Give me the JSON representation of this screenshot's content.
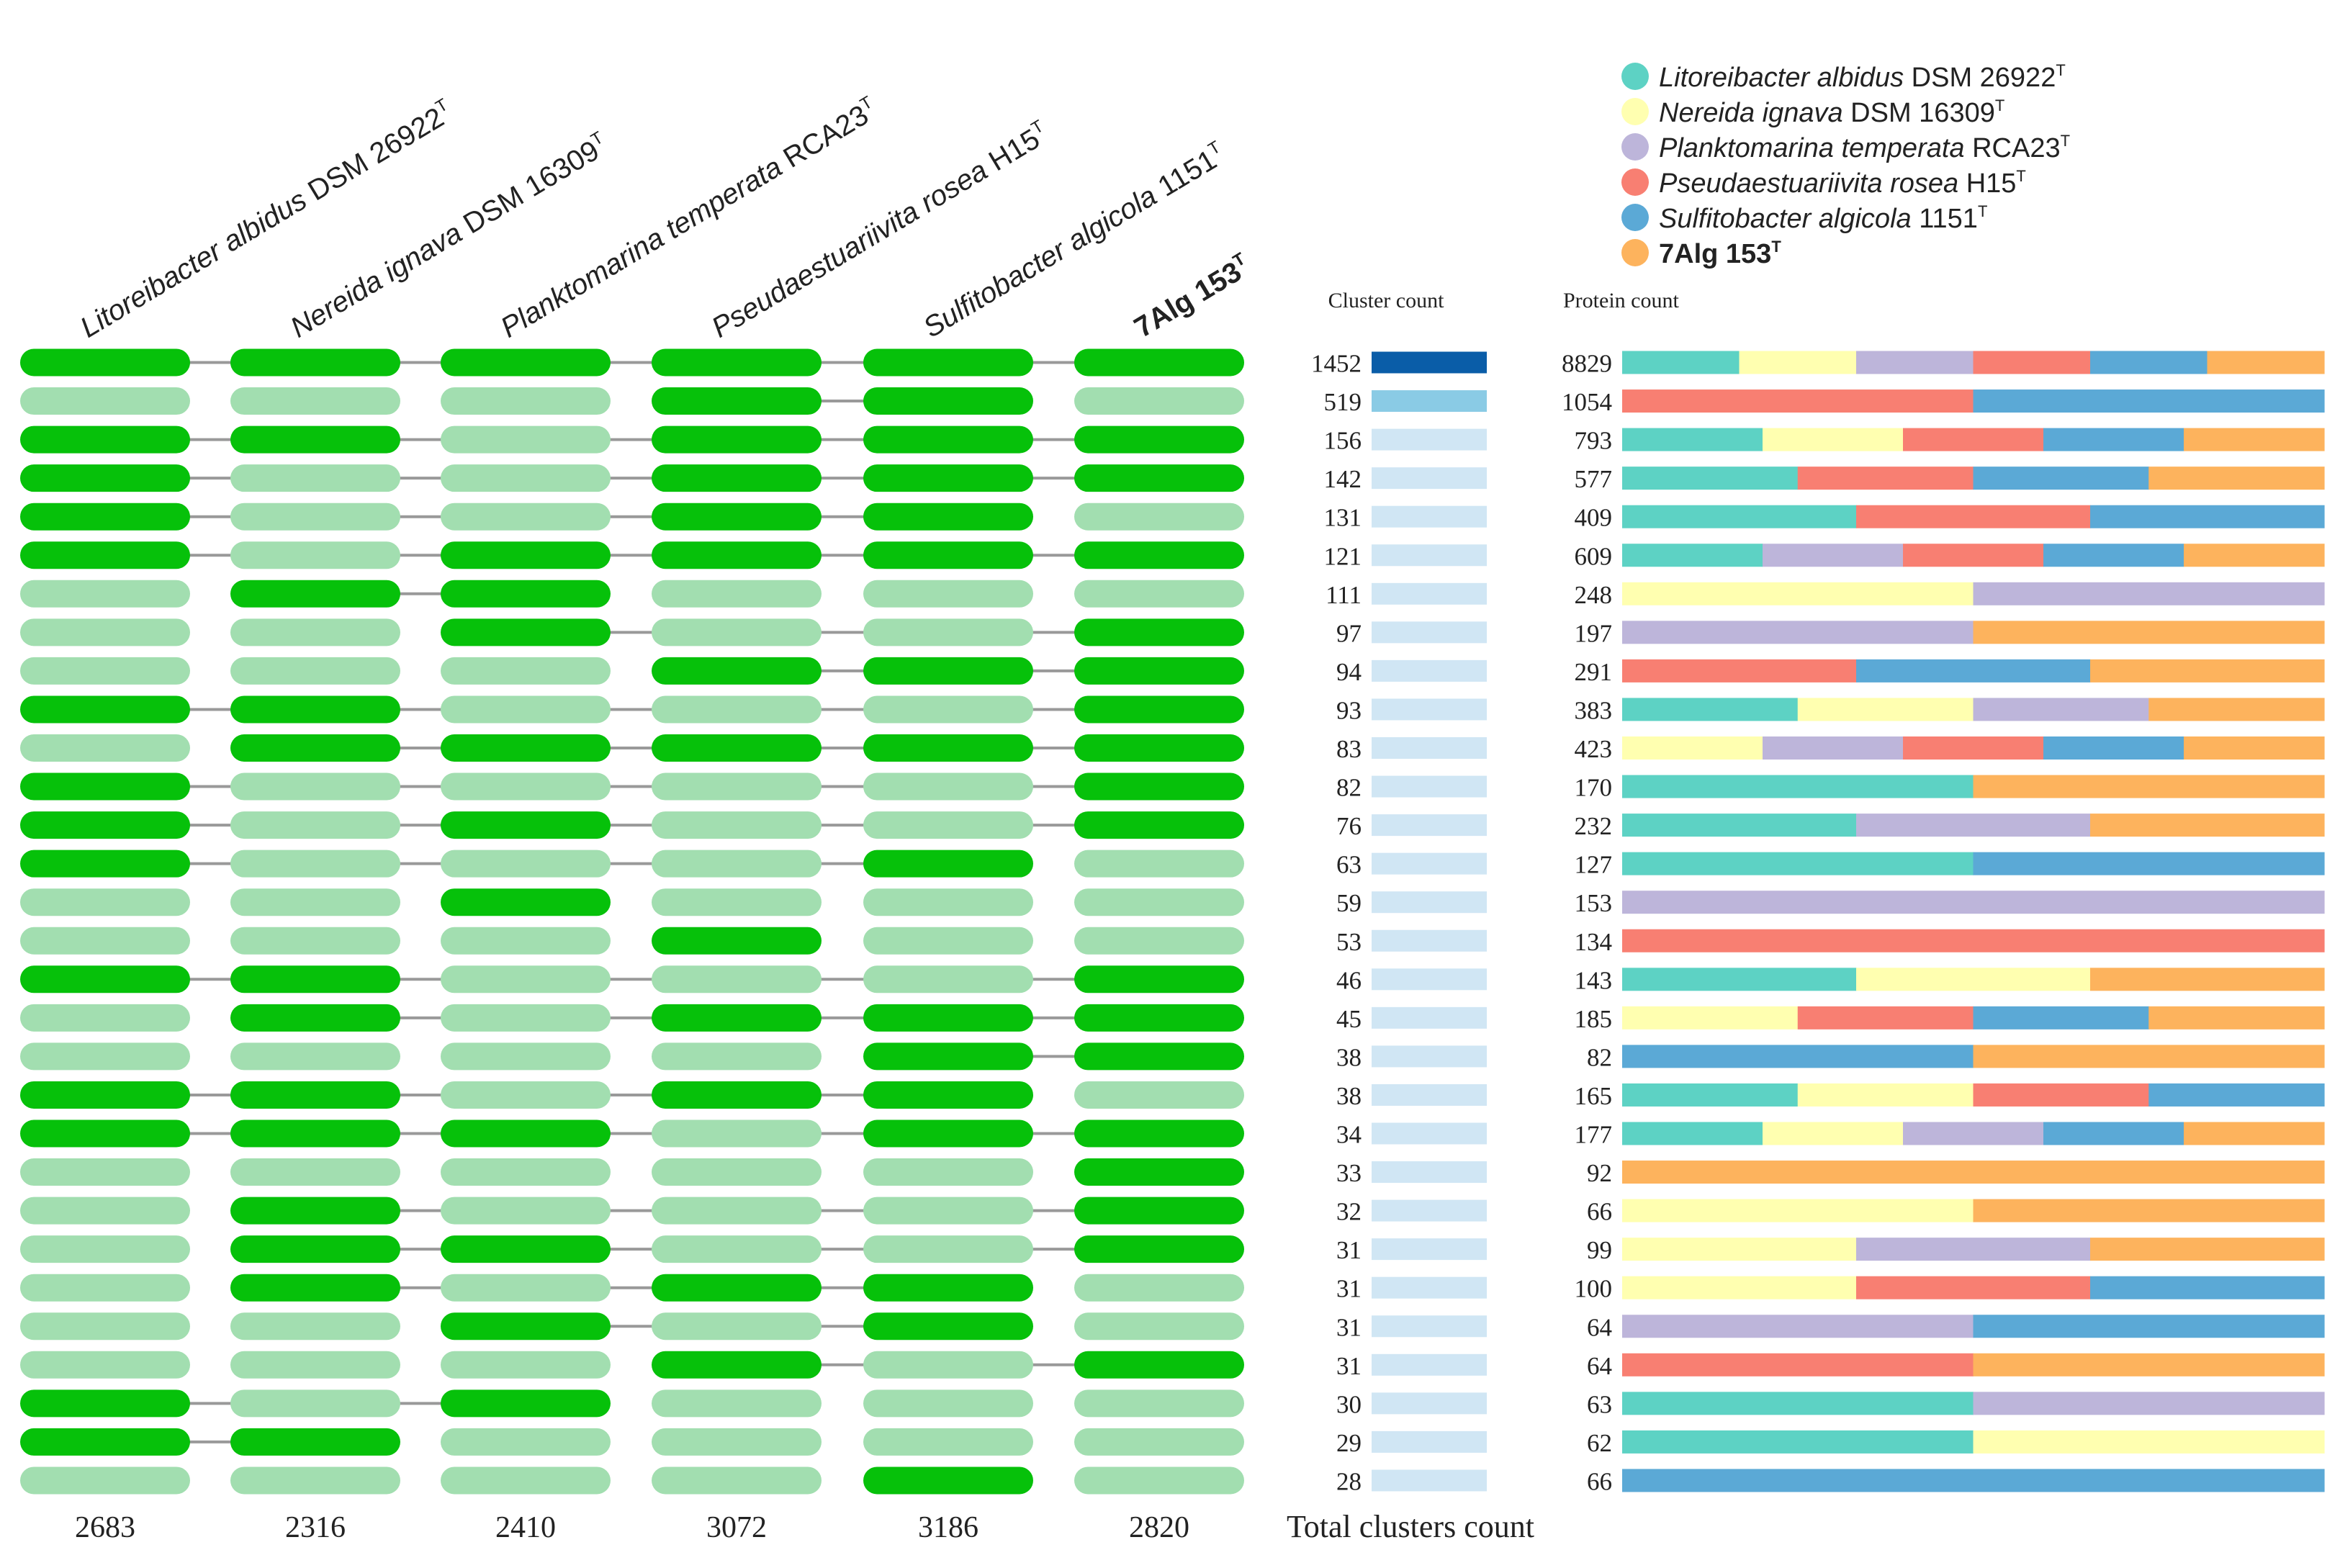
{
  "chart_data": {
    "type": "table",
    "title": "",
    "genomes": [
      {
        "genus_species": "Litoreibacter albidus",
        "strain": "DSM 26922",
        "sup": "T",
        "bold": false,
        "color": "#5dd2c4"
      },
      {
        "genus_species": "Nereida ignava",
        "strain": "DSM 16309",
        "sup": "T",
        "bold": false,
        "color": "#ffffb0"
      },
      {
        "genus_species": "Planktomarina temperata",
        "strain": "RCA23",
        "sup": "T",
        "bold": false,
        "color": "#bdb5da"
      },
      {
        "genus_species": "Pseudaestuariivita rosea",
        "strain": "H15",
        "sup": "T",
        "bold": false,
        "color": "#f87f72"
      },
      {
        "genus_species": "Sulfitobacter algicola",
        "strain": "1151",
        "sup": "T",
        "bold": false,
        "color": "#5ba9d6"
      },
      {
        "genus_species": "",
        "strain": "7Alg 153",
        "sup": "T",
        "bold": true,
        "color": "#fdb35d"
      }
    ],
    "presence": [
      [
        1,
        1,
        1,
        1,
        1,
        1
      ],
      [
        0,
        0,
        0,
        1,
        1,
        0
      ],
      [
        1,
        1,
        0,
        1,
        1,
        1
      ],
      [
        1,
        0,
        0,
        1,
        1,
        1
      ],
      [
        1,
        0,
        0,
        1,
        1,
        0
      ],
      [
        1,
        0,
        1,
        1,
        1,
        1
      ],
      [
        0,
        1,
        1,
        0,
        0,
        0
      ],
      [
        0,
        0,
        1,
        0,
        0,
        1
      ],
      [
        0,
        0,
        0,
        1,
        1,
        1
      ],
      [
        1,
        1,
        0,
        0,
        0,
        1
      ],
      [
        0,
        1,
        1,
        1,
        1,
        1
      ],
      [
        1,
        0,
        0,
        0,
        0,
        1
      ],
      [
        1,
        0,
        1,
        0,
        0,
        1
      ],
      [
        1,
        0,
        0,
        0,
        1,
        0
      ],
      [
        0,
        0,
        1,
        0,
        0,
        0
      ],
      [
        0,
        0,
        0,
        1,
        0,
        0
      ],
      [
        1,
        1,
        0,
        0,
        0,
        1
      ],
      [
        0,
        1,
        0,
        1,
        1,
        1
      ],
      [
        0,
        0,
        0,
        0,
        1,
        1
      ],
      [
        1,
        1,
        0,
        1,
        1,
        0
      ],
      [
        1,
        1,
        1,
        0,
        1,
        1
      ],
      [
        0,
        0,
        0,
        0,
        0,
        1
      ],
      [
        0,
        1,
        0,
        0,
        0,
        1
      ],
      [
        0,
        1,
        1,
        0,
        0,
        1
      ],
      [
        0,
        1,
        0,
        1,
        1,
        0
      ],
      [
        0,
        0,
        1,
        0,
        1,
        0
      ],
      [
        0,
        0,
        0,
        1,
        0,
        1
      ],
      [
        1,
        0,
        1,
        0,
        0,
        0
      ],
      [
        1,
        1,
        0,
        0,
        0,
        0
      ],
      [
        0,
        0,
        0,
        0,
        1,
        0
      ]
    ],
    "cluster_counts": [
      1452,
      519,
      156,
      142,
      131,
      121,
      111,
      97,
      94,
      93,
      83,
      82,
      76,
      63,
      59,
      53,
      46,
      45,
      38,
      38,
      34,
      33,
      32,
      31,
      31,
      31,
      31,
      30,
      29,
      28
    ],
    "protein_counts": [
      8829,
      1054,
      793,
      577,
      409,
      609,
      248,
      197,
      291,
      383,
      423,
      170,
      232,
      127,
      153,
      134,
      143,
      185,
      82,
      165,
      177,
      92,
      66,
      99,
      100,
      64,
      64,
      63,
      62,
      66
    ],
    "protein_segments": [
      [
        [
          0,
          1
        ],
        [
          1,
          1
        ],
        [
          2,
          1
        ],
        [
          3,
          1
        ],
        [
          4,
          1
        ],
        [
          5,
          1
        ]
      ],
      [
        [
          3,
          1
        ],
        [
          4,
          1
        ]
      ],
      [
        [
          0,
          1
        ],
        [
          1,
          1
        ],
        [
          3,
          1
        ],
        [
          4,
          1
        ],
        [
          5,
          1
        ]
      ],
      [
        [
          0,
          1
        ],
        [
          3,
          1
        ],
        [
          4,
          1
        ],
        [
          5,
          1
        ]
      ],
      [
        [
          0,
          1
        ],
        [
          3,
          1
        ],
        [
          4,
          1
        ]
      ],
      [
        [
          0,
          1
        ],
        [
          2,
          1
        ],
        [
          3,
          1
        ],
        [
          4,
          1
        ],
        [
          5,
          1
        ]
      ],
      [
        [
          1,
          1
        ],
        [
          2,
          1
        ]
      ],
      [
        [
          2,
          1
        ],
        [
          5,
          1
        ]
      ],
      [
        [
          3,
          1
        ],
        [
          4,
          1
        ],
        [
          5,
          1
        ]
      ],
      [
        [
          0,
          1
        ],
        [
          1,
          1
        ],
        [
          2,
          1
        ],
        [
          5,
          1
        ]
      ],
      [
        [
          1,
          1
        ],
        [
          2,
          1
        ],
        [
          3,
          1
        ],
        [
          4,
          1
        ],
        [
          5,
          1
        ]
      ],
      [
        [
          0,
          1
        ],
        [
          5,
          1
        ]
      ],
      [
        [
          0,
          1
        ],
        [
          2,
          1
        ],
        [
          5,
          1
        ]
      ],
      [
        [
          0,
          1
        ],
        [
          4,
          1
        ]
      ],
      [
        [
          2,
          1
        ]
      ],
      [
        [
          3,
          1
        ]
      ],
      [
        [
          0,
          1
        ],
        [
          1,
          1
        ],
        [
          5,
          1
        ]
      ],
      [
        [
          1,
          1
        ],
        [
          3,
          1
        ],
        [
          4,
          1
        ],
        [
          5,
          1
        ]
      ],
      [
        [
          4,
          1
        ],
        [
          5,
          1
        ]
      ],
      [
        [
          0,
          1
        ],
        [
          1,
          1
        ],
        [
          3,
          1
        ],
        [
          4,
          1
        ]
      ],
      [
        [
          0,
          1
        ],
        [
          1,
          1
        ],
        [
          2,
          1
        ],
        [
          4,
          1
        ],
        [
          5,
          1
        ]
      ],
      [
        [
          5,
          1
        ]
      ],
      [
        [
          1,
          1
        ],
        [
          5,
          1
        ]
      ],
      [
        [
          1,
          1
        ],
        [
          2,
          1
        ],
        [
          5,
          1
        ]
      ],
      [
        [
          1,
          1
        ],
        [
          3,
          1
        ],
        [
          4,
          1
        ]
      ],
      [
        [
          2,
          1
        ],
        [
          4,
          1
        ]
      ],
      [
        [
          3,
          1
        ],
        [
          5,
          1
        ]
      ],
      [
        [
          0,
          1
        ],
        [
          2,
          1
        ]
      ],
      [
        [
          0,
          1
        ],
        [
          1,
          1
        ]
      ],
      [
        [
          4,
          1
        ]
      ]
    ],
    "total_clusters": [
      2683,
      2316,
      2410,
      3072,
      3186,
      2820
    ],
    "total_clusters_label": "Total clusters count",
    "cluster_count_header": "Cluster count",
    "protein_count_header": "Protein count",
    "cluster_scale_max": 1452,
    "legend_placement": "top-right"
  },
  "colors": {
    "present": "#06c10a",
    "absent": "#a2deb0",
    "connector": "#999999",
    "cluster_bar_high": "#0a5da8",
    "cluster_bar_mid": "#8acbe5",
    "cluster_bar_low": "#d0e6f4"
  }
}
